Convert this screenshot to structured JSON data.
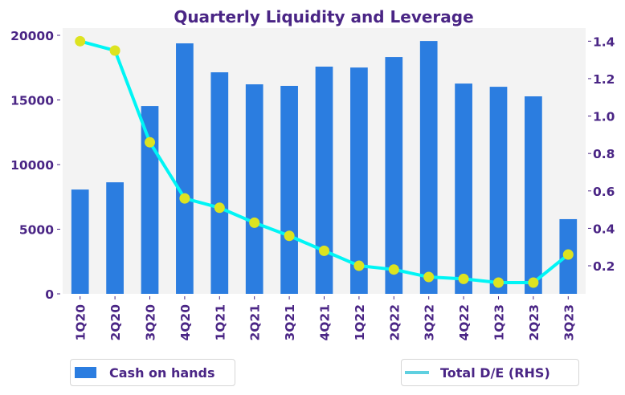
{
  "chart_data": {
    "type": "bar+line",
    "title": "Quarterly Liquidity and Leverage",
    "categories": [
      "1Q20",
      "2Q20",
      "3Q20",
      "4Q20",
      "1Q21",
      "2Q21",
      "3Q21",
      "4Q21",
      "1Q22",
      "2Q22",
      "3Q22",
      "4Q22",
      "1Q23",
      "2Q23",
      "3Q23"
    ],
    "series": [
      {
        "name": "Cash on hands",
        "type": "bar",
        "axis": "left",
        "color": "#2b7de0",
        "values": [
          8070,
          8630,
          14530,
          19380,
          17140,
          16210,
          16090,
          17580,
          17510,
          18320,
          19560,
          16270,
          16020,
          15280,
          5780
        ]
      },
      {
        "name": "Total D/E (RHS)",
        "type": "line",
        "axis": "right",
        "color": "#00f5f5",
        "legend_color": "#5fd0e0",
        "marker_color": "#dde320",
        "values": [
          1.4,
          1.35,
          0.86,
          0.56,
          0.51,
          0.43,
          0.36,
          0.28,
          0.2,
          0.18,
          0.14,
          0.13,
          0.11,
          0.11,
          0.26
        ]
      }
    ],
    "xlabel": "",
    "ylabel": "",
    "y_left": {
      "ylim": [
        0,
        20560
      ],
      "ticks": [
        0,
        5000,
        10000,
        15000,
        20000
      ],
      "tick_labels": [
        "0",
        "5000",
        "10000",
        "15000",
        "20000"
      ]
    },
    "y_right": {
      "ylim": [
        0.05,
        1.47
      ],
      "ticks": [
        0.2,
        0.4,
        0.6,
        0.8,
        1.0,
        1.2,
        1.4
      ],
      "tick_labels": [
        "0.2",
        "0.4",
        "0.6",
        "0.8",
        "1.0",
        "1.2",
        "1.4"
      ]
    },
    "grid": false,
    "plot_background": "#f3f3f3",
    "text_color": "#4a2585",
    "legend": [
      {
        "label": "Cash on hands",
        "placement": "bottom-left"
      },
      {
        "label": "Total D/E (RHS)",
        "placement": "bottom-right"
      }
    ]
  }
}
